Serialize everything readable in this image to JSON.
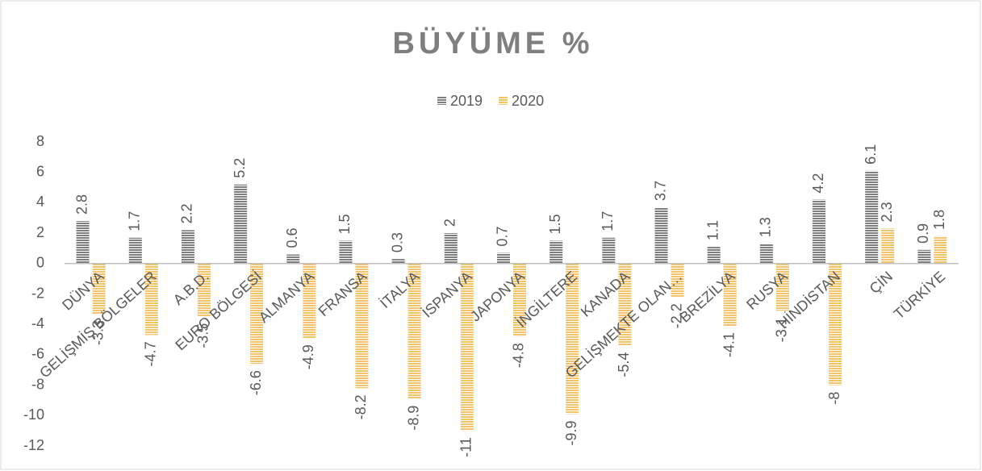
{
  "chart_data": {
    "type": "bar",
    "title": "BÜYÜME %",
    "categories": [
      "DÜNYA",
      "GELİŞMİŞ BÖLGELER",
      "A.B.D.",
      "EURO BÖLGESİ",
      "ALMANYA",
      "FRANSA",
      "İTALYA",
      "İSPANYA",
      "JAPONYA",
      "İNGİLTERE",
      "KANADA",
      "GELİŞMEKTE OLAN…",
      "BREZİLYA",
      "RUSYA",
      "HİNDİSTAN",
      "ÇİN",
      "TÜRKİYE"
    ],
    "series": [
      {
        "name": "2019",
        "color": "#7f7f7f",
        "values": [
          2.8,
          1.7,
          2.2,
          5.2,
          0.6,
          1.5,
          0.3,
          2,
          0.7,
          1.5,
          1.7,
          3.7,
          1.1,
          1.3,
          4.2,
          6.1,
          0.9
        ]
      },
      {
        "name": "2020",
        "color": "#f2c46d",
        "values": [
          -3.3,
          -4.7,
          -3.5,
          -6.6,
          -4.9,
          -8.2,
          -8.9,
          -11,
          -4.8,
          -9.9,
          -5.4,
          -2.2,
          -4.1,
          -3.1,
          -8,
          2.3,
          1.8
        ]
      }
    ],
    "ylim": [
      -12,
      8
    ],
    "yticks": [
      -12,
      -10,
      -8,
      -6,
      -4,
      -2,
      0,
      2,
      4,
      6,
      8
    ],
    "grid": false,
    "legend": "top"
  }
}
